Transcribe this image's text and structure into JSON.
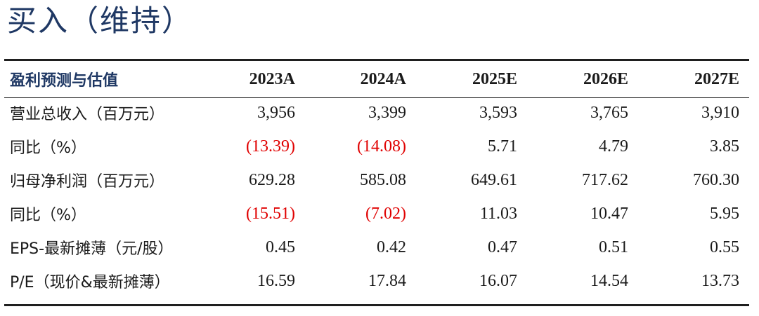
{
  "rating": "买入（维持）",
  "table": {
    "header": [
      "盈利预测与估值",
      "2023A",
      "2024A",
      "2025E",
      "2026E",
      "2027E"
    ],
    "rows": [
      {
        "label": "营业总收入（百万元）",
        "values": [
          "3,956",
          "3,399",
          "3,593",
          "3,765",
          "3,910"
        ],
        "negative": [
          false,
          false,
          false,
          false,
          false
        ]
      },
      {
        "label": "同比（%）",
        "values": [
          "(13.39)",
          "(14.08)",
          "5.71",
          "4.79",
          "3.85"
        ],
        "negative": [
          true,
          true,
          false,
          false,
          false
        ]
      },
      {
        "label": "归母净利润（百万元）",
        "values": [
          "629.28",
          "585.08",
          "649.61",
          "717.62",
          "760.30"
        ],
        "negative": [
          false,
          false,
          false,
          false,
          false
        ]
      },
      {
        "label": "同比（%）",
        "values": [
          "(15.51)",
          "(7.02)",
          "11.03",
          "10.47",
          "5.95"
        ],
        "negative": [
          true,
          true,
          false,
          false,
          false
        ]
      },
      {
        "label": "EPS-最新摊薄（元/股）",
        "values": [
          "0.45",
          "0.42",
          "0.47",
          "0.51",
          "0.55"
        ],
        "negative": [
          false,
          false,
          false,
          false,
          false
        ]
      },
      {
        "label": "P/E（现价&最新摊薄）",
        "values": [
          "16.59",
          "17.84",
          "16.07",
          "14.54",
          "13.73"
        ],
        "negative": [
          false,
          false,
          false,
          false,
          false
        ]
      }
    ]
  },
  "colors": {
    "title": "#1f3864",
    "negative": "#e00000",
    "text": "#1a1a1a",
    "rule": "#1f1f1f"
  }
}
